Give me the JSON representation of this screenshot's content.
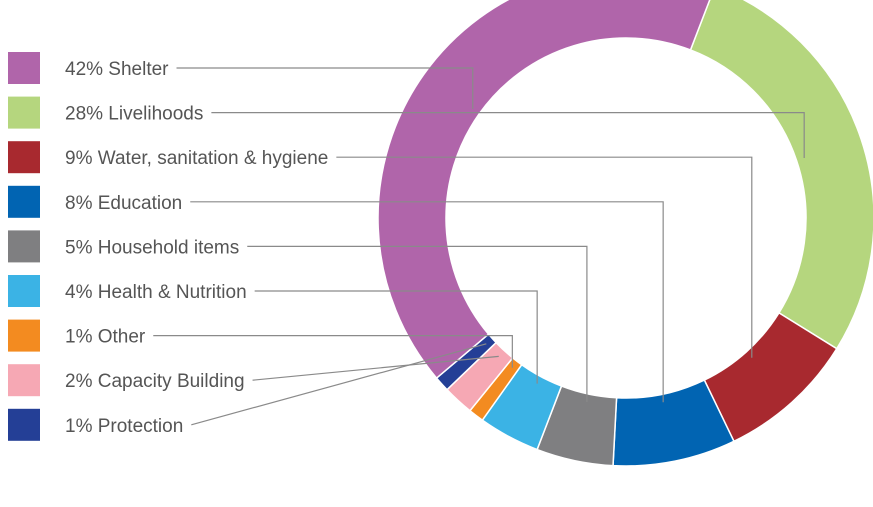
{
  "chart_data": {
    "type": "pie",
    "variant": "donut",
    "title": "",
    "legend_position": "left",
    "unit": "%",
    "series": [
      {
        "label": "42% Shelter",
        "category": "Shelter",
        "value": 42,
        "color": "#b065aa"
      },
      {
        "label": "28% Livelihoods",
        "category": "Livelihoods",
        "value": 28,
        "color": "#b5d67e"
      },
      {
        "label": "9% Water, sanitation & hygiene",
        "category": "Water, sanitation & hygiene",
        "value": 9,
        "color": "#a8292f"
      },
      {
        "label": "8% Education",
        "category": "Education",
        "value": 8,
        "color": "#0164b2"
      },
      {
        "label": "5% Household items",
        "category": "Household items",
        "value": 5,
        "color": "#7f7f81"
      },
      {
        "label": "4% Health & Nutrition",
        "category": "Health & Nutrition",
        "value": 4,
        "color": "#3bb3e5"
      },
      {
        "label": "1% Other",
        "category": "Other",
        "value": 1,
        "color": "#f38b20"
      },
      {
        "label": "2% Capacity Building",
        "category": "Capacity Building",
        "value": 2,
        "color": "#f6a8b4"
      },
      {
        "label": "1% Protection",
        "category": "Protection",
        "value": 1,
        "color": "#243f96"
      }
    ]
  }
}
